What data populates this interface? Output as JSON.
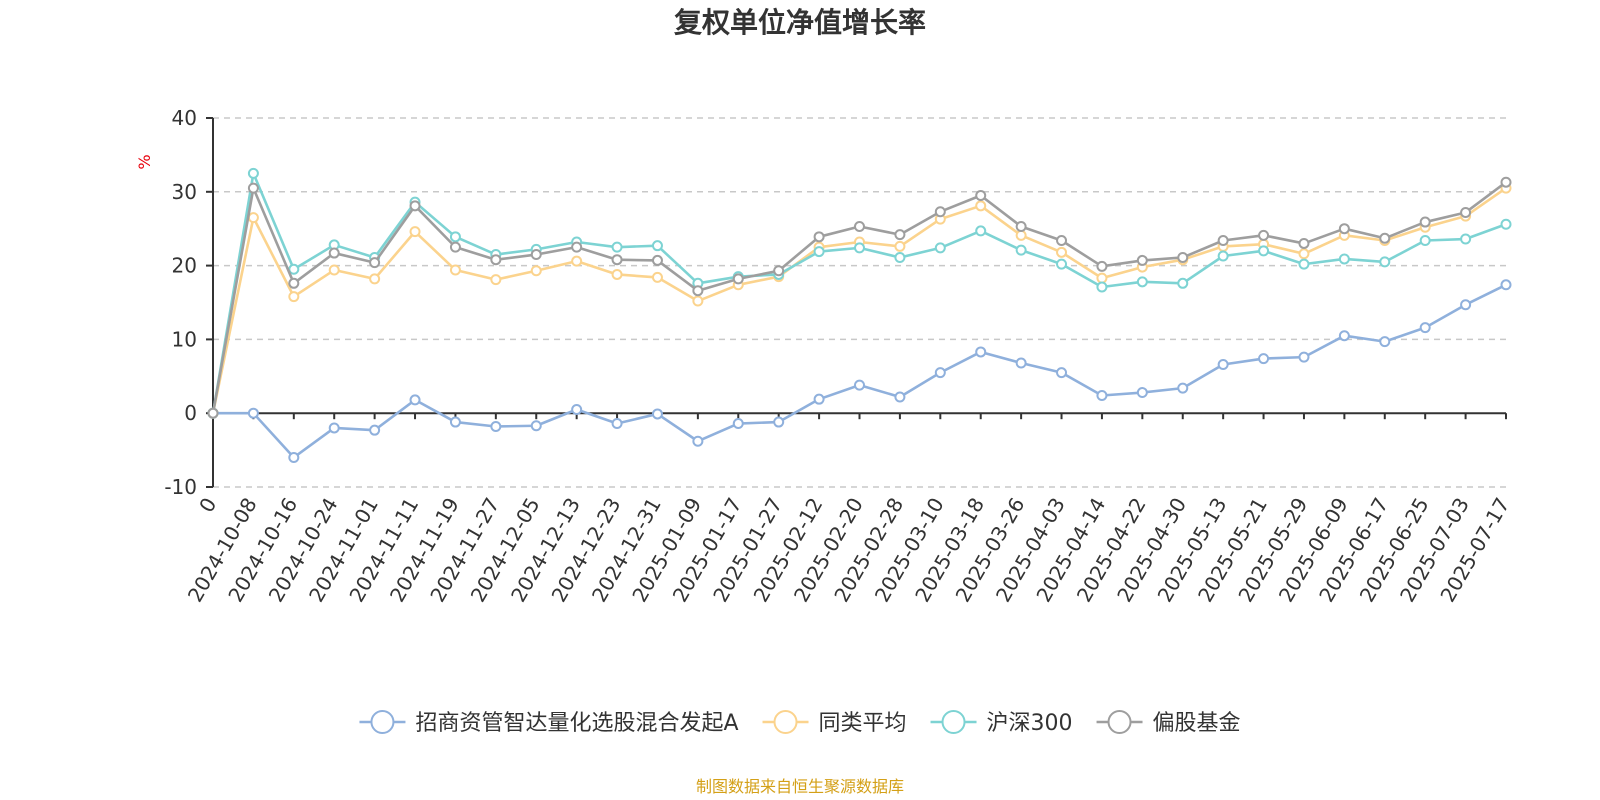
{
  "chart_data": {
    "type": "line",
    "title": "复权单位净值增长率",
    "ylabel": "%",
    "ylim": [
      -10,
      40
    ],
    "yticks": [
      -10,
      0,
      10,
      20,
      30,
      40
    ],
    "grid": true,
    "legend_position": "bottom",
    "x_tick_labels": [
      "0",
      "2024-10-08",
      "2024-10-16",
      "2024-10-24",
      "2024-11-01",
      "2024-11-11",
      "2024-11-19",
      "2024-11-27",
      "2024-12-05",
      "2024-12-13",
      "2024-12-23",
      "2024-12-31",
      "2025-01-09",
      "2025-01-17",
      "2025-01-27",
      "2025-02-12",
      "2025-02-20",
      "2025-02-28",
      "2025-03-10",
      "2025-03-18",
      "2025-03-26",
      "2025-04-03",
      "2025-04-14",
      "2025-04-22",
      "2025-04-30",
      "2025-05-13",
      "2025-05-21",
      "2025-05-29",
      "2025-06-09",
      "2025-06-17",
      "2025-06-25",
      "2025-07-03",
      "2025-07-17"
    ],
    "series": [
      {
        "name": "招商资管智达量化选股混合发起A",
        "color": "#8fb0dc",
        "values": [
          0,
          0,
          -6,
          -2,
          -2.3,
          1.8,
          -1.2,
          -1.8,
          -1.7,
          0.5,
          -1.4,
          -0.1,
          -3.8,
          -1.4,
          -1.2,
          1.9,
          3.8,
          2.2,
          5.5,
          8.3,
          6.8,
          5.5,
          2.4,
          2.8,
          3.4,
          6.6,
          7.4,
          7.6,
          10.5,
          9.7,
          11.6,
          14.7,
          17.4
        ]
      },
      {
        "name": "同类平均",
        "color": "#fbd38d",
        "values": [
          0,
          26.5,
          15.8,
          19.4,
          18.2,
          24.6,
          19.4,
          18.1,
          19.3,
          20.6,
          18.8,
          18.4,
          15.2,
          17.4,
          18.5,
          22.5,
          23.2,
          22.6,
          26.3,
          28.1,
          24.1,
          21.8,
          18.3,
          19.8,
          20.8,
          22.6,
          22.9,
          21.6,
          24.1,
          23.4,
          25.2,
          26.7,
          30.5
        ]
      },
      {
        "name": "沪深300",
        "color": "#7dd3d3",
        "values": [
          0,
          32.5,
          19.5,
          22.8,
          21.1,
          28.6,
          23.9,
          21.5,
          22.2,
          23.2,
          22.5,
          22.7,
          17.6,
          18.5,
          18.8,
          21.9,
          22.4,
          21.1,
          22.4,
          24.7,
          22.1,
          20.2,
          17.1,
          17.8,
          17.6,
          21.3,
          22,
          20.2,
          20.9,
          20.5,
          23.4,
          23.6,
          25.6
        ]
      },
      {
        "name": "偏股基金",
        "color": "#9e9e9e",
        "values": [
          0,
          30.5,
          17.6,
          21.7,
          20.4,
          28.1,
          22.5,
          20.8,
          21.5,
          22.5,
          20.8,
          20.7,
          16.6,
          18.2,
          19.3,
          23.9,
          25.3,
          24.2,
          27.3,
          29.5,
          25.3,
          23.4,
          19.9,
          20.7,
          21.1,
          23.4,
          24.1,
          23,
          25,
          23.7,
          25.9,
          27.2,
          31.3
        ]
      }
    ]
  },
  "source_note": "制图数据来自恒生聚源数据库"
}
